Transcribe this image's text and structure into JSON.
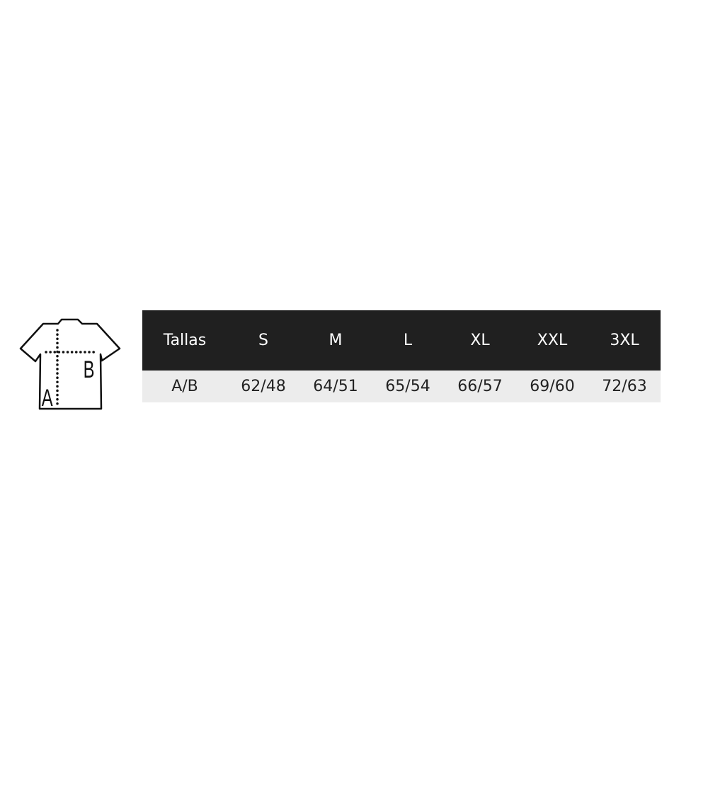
{
  "diagram": {
    "label_a": "A",
    "label_b": "B"
  },
  "table": {
    "header_label": "Tallas",
    "sizes": [
      "S",
      "M",
      "L",
      "XL",
      "XXL",
      "3XL"
    ],
    "row_label": "A/B",
    "values": [
      "62/48",
      "64/51",
      "65/54",
      "66/57",
      "69/60",
      "72/63"
    ]
  },
  "colors": {
    "header_bg": "#202020",
    "row_bg": "#ececec"
  }
}
